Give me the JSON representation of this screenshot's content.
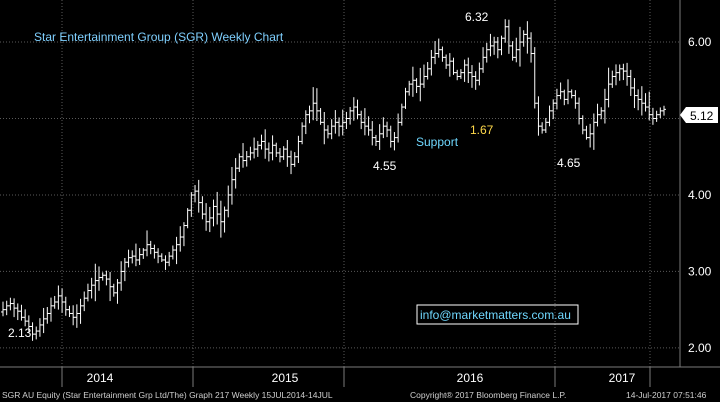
{
  "chart_data": {
    "type": "candlestick",
    "title": "Star Entertainment Group (SGR) Weekly Chart",
    "ylim": [
      1.75,
      6.55
    ],
    "y_ticks": [
      2.0,
      3.0,
      4.0,
      5.0,
      6.0
    ],
    "y_tick_labels": [
      "2.00",
      "3.00",
      "4.00",
      "5.00",
      "6.00"
    ],
    "x_labels": [
      "2014",
      "2015",
      "2016",
      "2017"
    ],
    "grid": true,
    "last_price": "5.12",
    "annotations": {
      "high": "6.32",
      "start_low": "2.13",
      "low_2015": "4.55",
      "low_2016": "4.65",
      "support_label": "Support",
      "support_value": "1.67",
      "watermark": "info@marketmatters.com.au"
    },
    "closes": [
      2.5,
      2.55,
      2.58,
      2.52,
      2.48,
      2.4,
      2.35,
      2.28,
      2.18,
      2.22,
      2.3,
      2.38,
      2.45,
      2.55,
      2.6,
      2.68,
      2.6,
      2.5,
      2.45,
      2.4,
      2.45,
      2.55,
      2.65,
      2.75,
      2.82,
      2.88,
      2.92,
      2.95,
      2.9,
      2.8,
      2.72,
      2.85,
      3.0,
      3.12,
      3.18,
      3.2,
      3.15,
      3.22,
      3.28,
      3.35,
      3.3,
      3.25,
      3.2,
      3.15,
      3.12,
      3.2,
      3.28,
      3.35,
      3.45,
      3.6,
      3.8,
      4.0,
      4.05,
      3.9,
      3.75,
      3.65,
      3.7,
      3.85,
      3.75,
      3.65,
      3.8,
      4.0,
      4.2,
      4.35,
      4.5,
      4.45,
      4.5,
      4.55,
      4.6,
      4.65,
      4.7,
      4.6,
      4.55,
      4.65,
      4.55,
      4.5,
      4.6,
      4.5,
      4.4,
      4.5,
      4.7,
      4.9,
      5.05,
      5.1,
      5.2,
      5.1,
      4.95,
      4.85,
      4.8,
      4.9,
      4.95,
      4.9,
      4.95,
      5.0,
      5.1,
      5.15,
      5.05,
      4.95,
      4.9,
      4.85,
      4.75,
      4.7,
      4.8,
      4.9,
      4.85,
      4.7,
      4.75,
      4.95,
      5.15,
      5.35,
      5.45,
      5.5,
      5.42,
      5.45,
      5.55,
      5.65,
      5.8,
      5.85,
      5.9,
      5.8,
      5.7,
      5.75,
      5.6,
      5.55,
      5.6,
      5.7,
      5.6,
      5.55,
      5.5,
      5.65,
      5.8,
      5.9,
      5.95,
      6.0,
      5.9,
      6.05,
      6.2,
      5.95,
      5.8,
      5.9,
      6.0,
      6.1,
      6.05,
      5.85,
      5.2,
      4.9,
      4.85,
      4.95,
      5.1,
      5.2,
      5.3,
      5.35,
      5.25,
      5.35,
      5.3,
      5.2,
      5.0,
      4.85,
      4.75,
      4.8,
      4.95,
      5.05,
      5.1,
      5.25,
      5.45,
      5.55,
      5.6,
      5.65,
      5.62,
      5.55,
      5.4,
      5.3,
      5.25,
      5.2,
      5.15,
      5.05,
      5.0,
      5.05,
      5.1,
      5.12
    ]
  },
  "footer": {
    "left": "SGR AU Equity (Star Entertainment Grp Ltd/The) Graph 217 Weekly 15JUL2014-14JUL",
    "center": "Copyright® 2017 Bloomberg Finance L.P.",
    "right": "14-Jul-2017 07:51:46"
  },
  "colors": {
    "background": "#000000",
    "bars": "#ffffff",
    "grid": "#5a5a5a",
    "title": "#7fd0ff",
    "support": "#6fd8ff",
    "support_value": "#ffd94a",
    "watermark_border": "#ffffff",
    "watermark_text": "#6fd8ff"
  }
}
